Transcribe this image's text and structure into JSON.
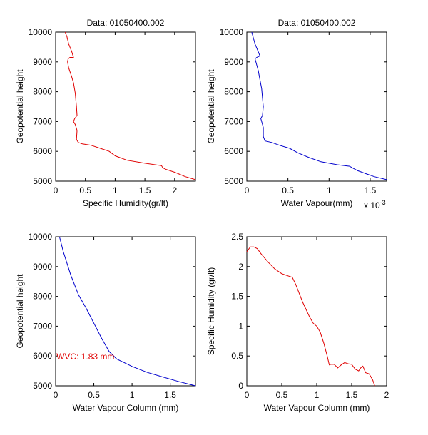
{
  "figure": {
    "background": "#ffffff"
  },
  "chart_data": [
    {
      "type": "line",
      "title": "Data: 01050400.002",
      "xlabel": "Specific Humidity(gr/lt)",
      "ylabel": "Geopotential height",
      "xlim": [
        0,
        2.35
      ],
      "ylim": [
        5000,
        10000
      ],
      "xticks": [
        0,
        0.5,
        1,
        1.5,
        2
      ],
      "yticks": [
        5000,
        6000,
        7000,
        8000,
        9000,
        10000
      ],
      "x_exponent_label": "",
      "color": "#e00000",
      "series": [
        {
          "x": [
            2.35,
            2.18,
            2.0,
            1.85,
            1.8,
            1.78,
            1.5,
            1.2,
            1.0,
            0.9,
            0.75,
            0.6,
            0.45,
            0.38,
            0.35,
            0.36,
            0.33,
            0.3,
            0.32,
            0.36,
            0.35,
            0.34,
            0.33,
            0.3,
            0.27,
            0.22,
            0.2,
            0.21,
            0.24,
            0.3,
            0.27,
            0.22,
            0.19,
            0.16
          ],
          "y": [
            5050,
            5150,
            5300,
            5400,
            5450,
            5520,
            5600,
            5700,
            5850,
            6000,
            6100,
            6200,
            6250,
            6300,
            6400,
            6700,
            6900,
            7000,
            7100,
            7200,
            7500,
            7700,
            7950,
            8300,
            8500,
            8800,
            9000,
            9100,
            9150,
            9150,
            9350,
            9600,
            9850,
            10000
          ]
        }
      ]
    },
    {
      "type": "line",
      "title": "Data: 01050400.002",
      "xlabel": "Water Vapour(mm)",
      "ylabel": "Geopotential height",
      "xlim": [
        0,
        1.7
      ],
      "ylim": [
        5000,
        10000
      ],
      "xticks": [
        0,
        0.5,
        1,
        1.5
      ],
      "yticks": [
        5000,
        6000,
        7000,
        8000,
        9000,
        10000
      ],
      "x_exponent_label": "x 10",
      "x_exponent_power": "-3",
      "color": "#0000cc",
      "series": [
        {
          "x": [
            1.7,
            1.55,
            1.45,
            1.35,
            1.28,
            1.25,
            1.1,
            0.9,
            0.75,
            0.62,
            0.52,
            0.4,
            0.3,
            0.22,
            0.2,
            0.2,
            0.18,
            0.17,
            0.19,
            0.2,
            0.19,
            0.18,
            0.16,
            0.14,
            0.11,
            0.1,
            0.12,
            0.16,
            0.13,
            0.1,
            0.08,
            0.06
          ],
          "y": [
            5050,
            5150,
            5250,
            5350,
            5450,
            5500,
            5550,
            5650,
            5800,
            5950,
            6100,
            6200,
            6300,
            6350,
            6500,
            6800,
            7000,
            7100,
            7200,
            7500,
            7800,
            8100,
            8400,
            8700,
            9000,
            9100,
            9150,
            9200,
            9400,
            9600,
            9800,
            10000
          ]
        }
      ]
    },
    {
      "type": "line",
      "title": "",
      "xlabel": "Water Vapour Column (mm)",
      "ylabel": "Geopotential height",
      "xlim": [
        0,
        1.83
      ],
      "ylim": [
        5000,
        10000
      ],
      "xticks": [
        0,
        0.5,
        1,
        1.5
      ],
      "yticks": [
        5000,
        6000,
        7000,
        8000,
        9000,
        10000
      ],
      "x_exponent_label": "",
      "color": "#0000cc",
      "annotation": {
        "text": "WVC: 1.83 mm",
        "x": 0.01,
        "y": 6000,
        "color": "#e00000"
      },
      "series": [
        {
          "x": [
            0.05,
            0.1,
            0.2,
            0.3,
            0.4,
            0.5,
            0.6,
            0.7,
            0.8,
            1.0,
            1.2,
            1.4,
            1.6,
            1.83
          ],
          "y": [
            10000,
            9500,
            8700,
            8050,
            7600,
            7100,
            6600,
            6150,
            5900,
            5650,
            5450,
            5300,
            5150,
            5000
          ]
        }
      ]
    },
    {
      "type": "line",
      "title": "",
      "xlabel": "Water Vapour Column (mm)",
      "ylabel": "Specific Humidity (gr/lt)",
      "xlim": [
        0,
        2
      ],
      "ylim": [
        0,
        2.5
      ],
      "xticks": [
        0,
        0.5,
        1,
        1.5,
        2
      ],
      "yticks": [
        0,
        0.5,
        1,
        1.5,
        2,
        2.5
      ],
      "x_exponent_label": "",
      "color": "#e00000",
      "series": [
        {
          "x": [
            0.0,
            0.05,
            0.1,
            0.15,
            0.2,
            0.3,
            0.4,
            0.5,
            0.55,
            0.6,
            0.65,
            0.7,
            0.8,
            0.9,
            0.95,
            1.0,
            1.05,
            1.1,
            1.15,
            1.18,
            1.2,
            1.25,
            1.3,
            1.35,
            1.4,
            1.45,
            1.5,
            1.55,
            1.6,
            1.63,
            1.66,
            1.7,
            1.75,
            1.8,
            1.83
          ],
          "y": [
            2.25,
            2.33,
            2.33,
            2.3,
            2.22,
            2.08,
            1.96,
            1.88,
            1.86,
            1.84,
            1.82,
            1.7,
            1.4,
            1.15,
            1.05,
            1.0,
            0.9,
            0.72,
            0.5,
            0.35,
            0.36,
            0.36,
            0.3,
            0.35,
            0.39,
            0.37,
            0.36,
            0.28,
            0.25,
            0.3,
            0.33,
            0.22,
            0.2,
            0.1,
            0.0
          ]
        }
      ]
    }
  ]
}
